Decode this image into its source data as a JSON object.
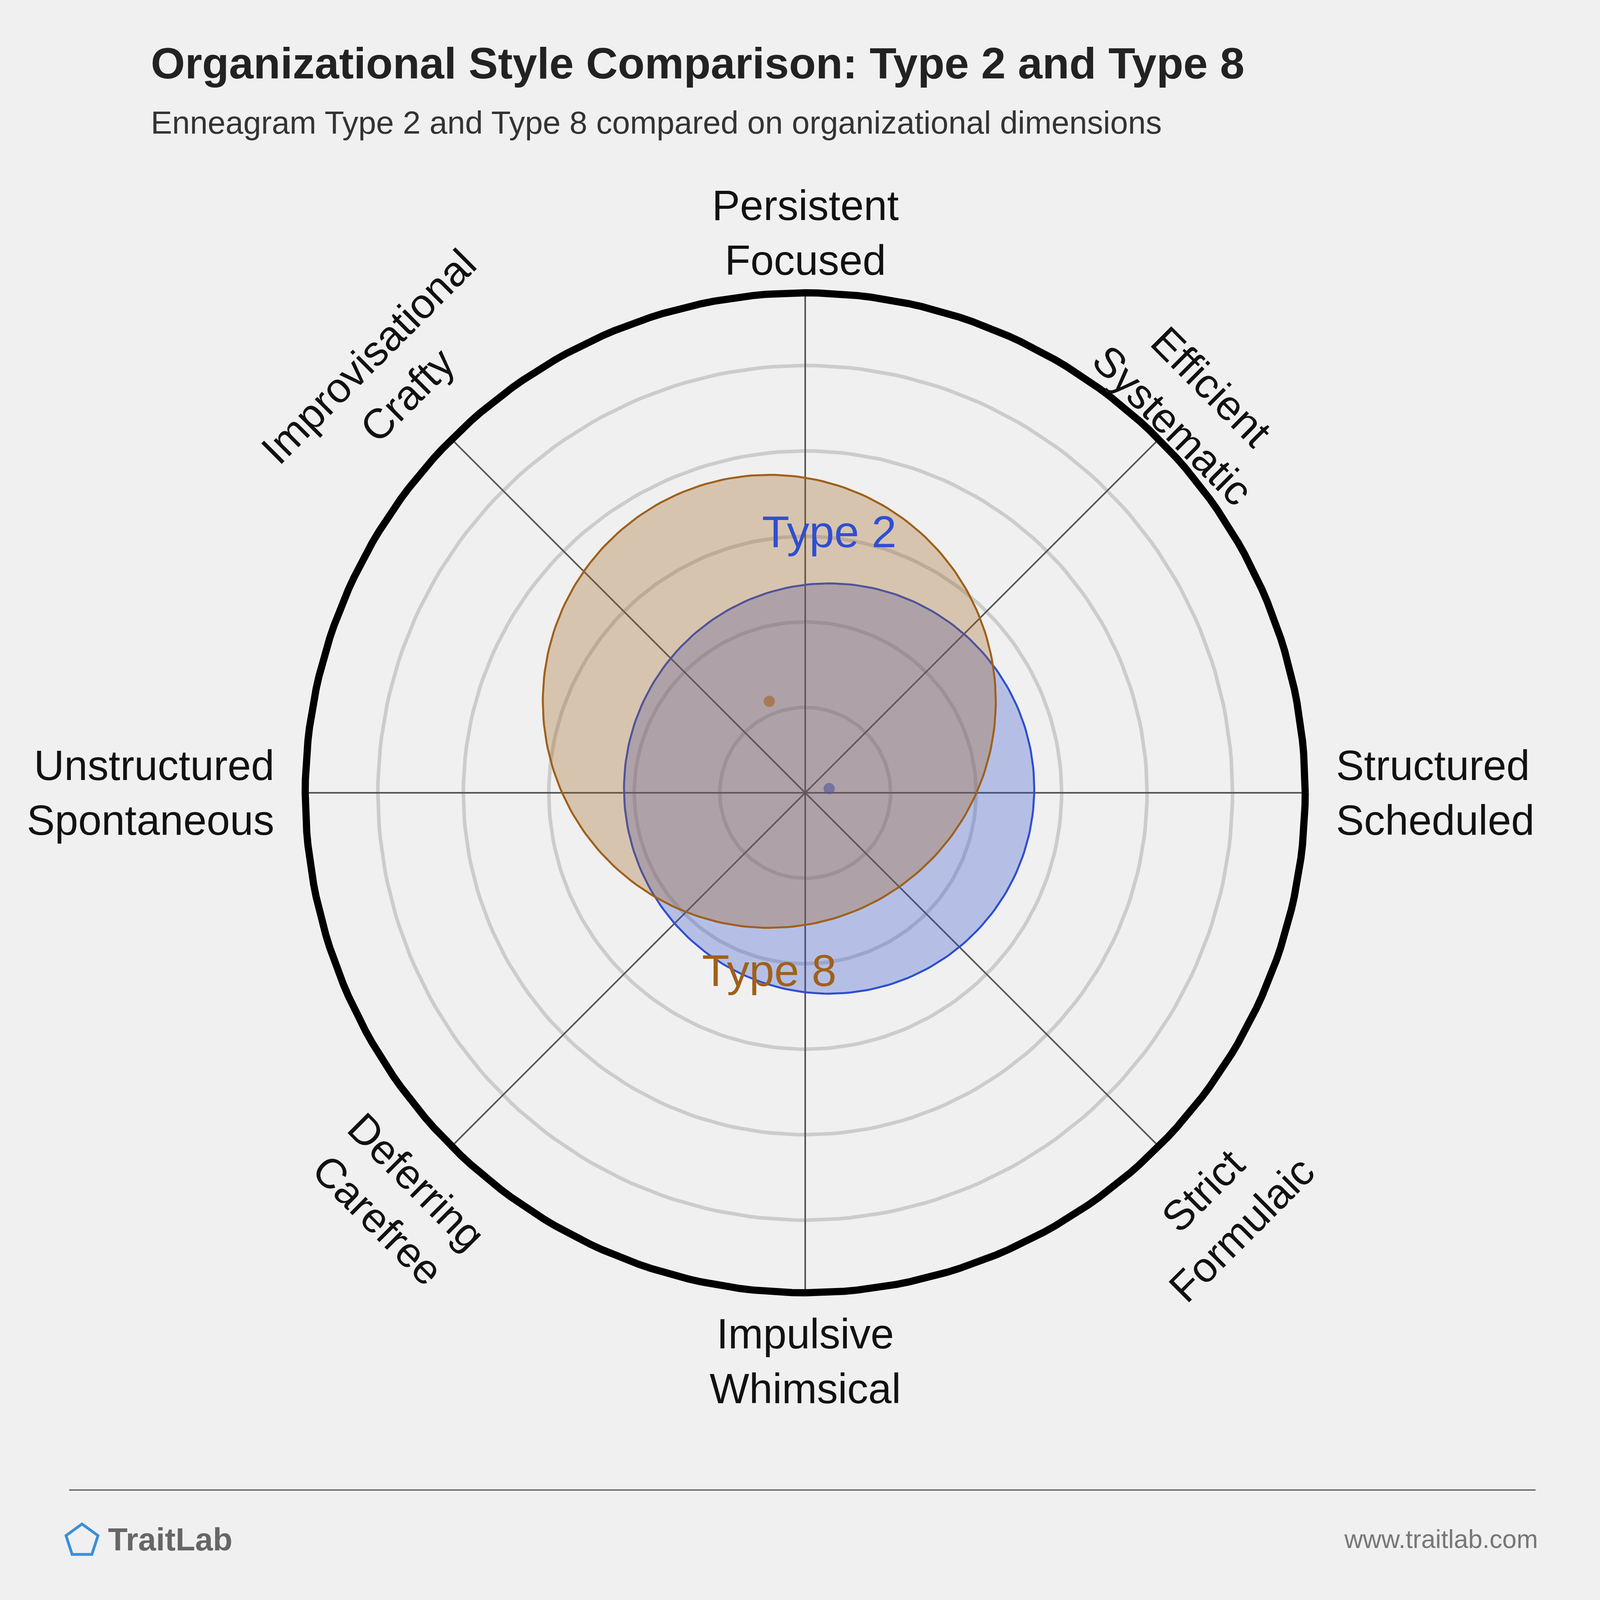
{
  "chart_data": {
    "type": "circle_radar",
    "title": "Organizational Style Comparison: Type 2 and Type 8",
    "subtitle": "Enneagram Type 2 and Type 8 compared on organizational dimensions",
    "axes": [
      [
        "Persistent",
        "Focused"
      ],
      [
        "Efficient",
        "Systematic"
      ],
      [
        "Structured",
        "Scheduled"
      ],
      [
        "Strict",
        "Formulaic"
      ],
      [
        "Impulsive",
        "Whimsical"
      ],
      [
        "Deferring",
        "Carefree"
      ],
      [
        "Unstructured",
        "Spontaneous"
      ],
      [
        "Improvisational",
        "Crafty"
      ]
    ],
    "rlim": [
      0,
      5.85
    ],
    "rticks": [
      1,
      2,
      3,
      4,
      5
    ],
    "tick_labels": false,
    "grid": true,
    "series": [
      {
        "name": "Type 2",
        "color": "#2f4fd0",
        "center": [
          0.28,
          0.05
        ],
        "radius": 2.4
      },
      {
        "name": "Type 8",
        "color": "#a0601a",
        "center": [
          -0.42,
          1.07
        ],
        "radius": 2.65
      }
    ],
    "footer": {
      "brand": "TraitLab",
      "url": "www.traitlab.com"
    }
  }
}
